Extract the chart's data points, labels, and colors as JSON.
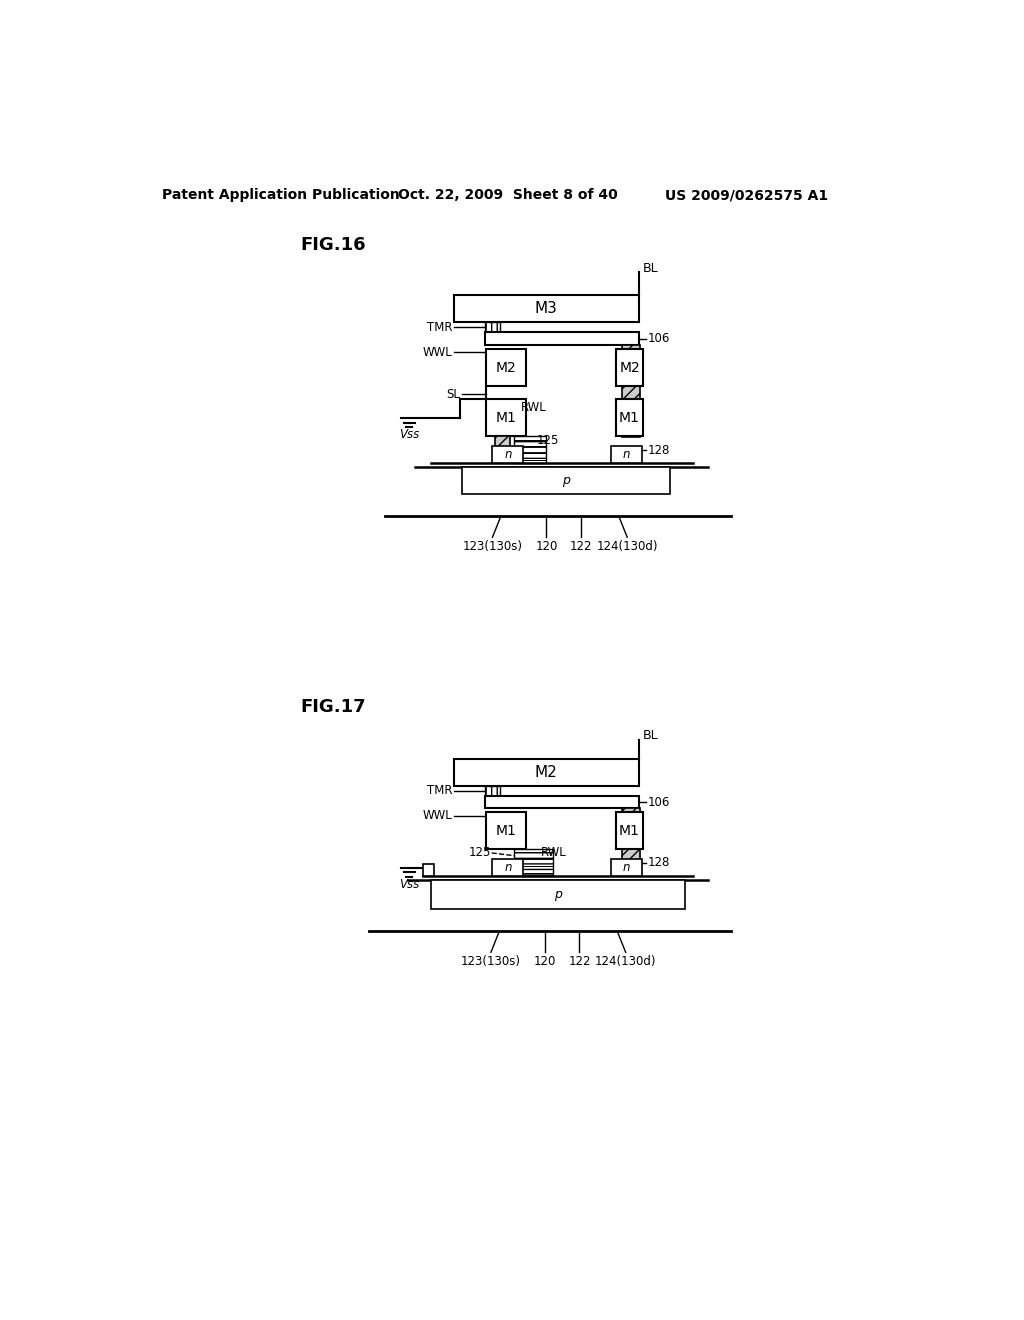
{
  "bg_color": "#ffffff",
  "header_left": "Patent Application Publication",
  "header_mid": "Oct. 22, 2009  Sheet 8 of 40",
  "header_right": "US 2009/0262575 A1",
  "fig16_label": "FIG.16",
  "fig17_label": "FIG.17"
}
